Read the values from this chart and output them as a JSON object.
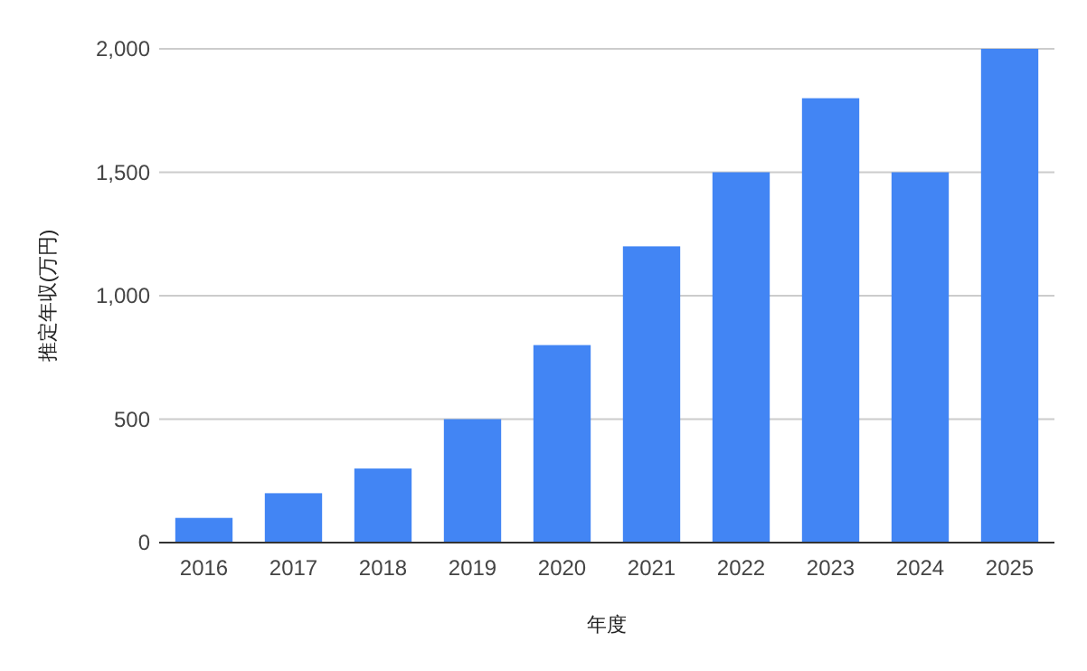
{
  "chart_data": {
    "type": "bar",
    "xlabel": "年度",
    "ylabel": "推定年収(万円)",
    "categories": [
      "2016",
      "2017",
      "2018",
      "2019",
      "2020",
      "2021",
      "2022",
      "2023",
      "2024",
      "2025"
    ],
    "values": [
      100,
      200,
      300,
      500,
      800,
      1200,
      1500,
      1800,
      1500,
      2000
    ],
    "color": "#4285f4",
    "ylim": [
      0,
      2000
    ],
    "yticks": [
      0,
      500,
      {
        "value": 1000,
        "label": "1,000"
      },
      {
        "value": 1500,
        "label": "1,500"
      },
      {
        "value": 2000,
        "label": "2,000"
      }
    ],
    "grid": "y"
  }
}
